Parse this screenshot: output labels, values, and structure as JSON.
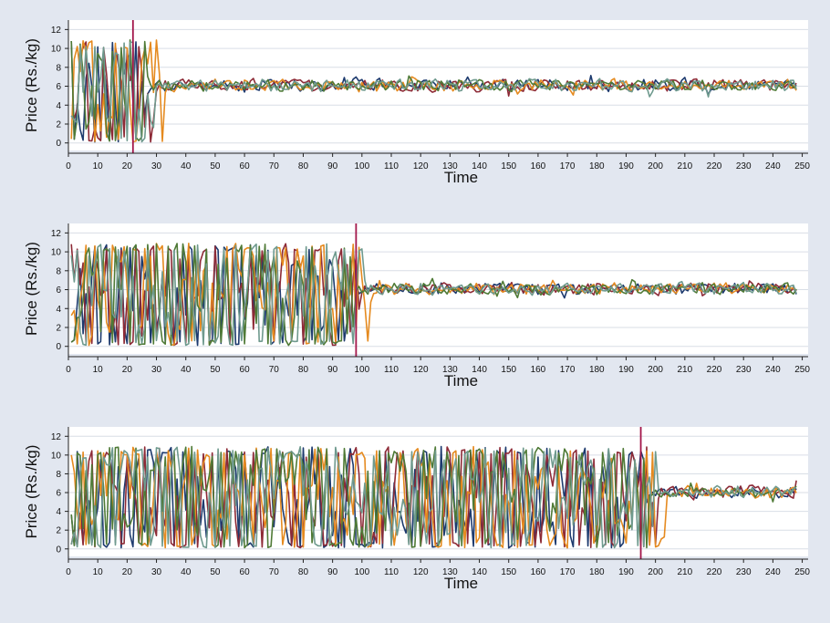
{
  "colors": {
    "background": "#e2e7f0",
    "plot_background": "#ffffff",
    "grid": "#d9dee6",
    "marker_line": "#a3164a",
    "series": [
      "#1d3a6e",
      "#8d2a36",
      "#e58a1f",
      "#4f7a36",
      "#6f9a8e"
    ]
  },
  "chart_data": [
    {
      "type": "line",
      "panel": "top",
      "xlabel": "Time",
      "ylabel": "Price (Rs./kg)",
      "xlim": [
        0,
        252
      ],
      "ylim": [
        -0.8,
        13
      ],
      "xticks": [
        0,
        10,
        20,
        30,
        40,
        50,
        60,
        70,
        80,
        90,
        100,
        110,
        120,
        130,
        140,
        150,
        160,
        170,
        180,
        190,
        200,
        210,
        220,
        230,
        240,
        250
      ],
      "yticks": [
        0,
        2,
        4,
        6,
        8,
        10,
        12
      ],
      "grid": "horizontal",
      "vertical_marker": 22,
      "converge_time": 22,
      "chaos_amplitude": 5.5,
      "noise_amplitude": 1.4,
      "series_count": 5
    },
    {
      "type": "line",
      "panel": "middle",
      "xlabel": "Time",
      "ylabel": "Price (Rs./kg)",
      "xlim": [
        0,
        252
      ],
      "ylim": [
        -0.8,
        13
      ],
      "xticks": [
        0,
        10,
        20,
        30,
        40,
        50,
        60,
        70,
        80,
        90,
        100,
        110,
        120,
        130,
        140,
        150,
        160,
        170,
        180,
        190,
        200,
        210,
        220,
        230,
        240,
        250
      ],
      "yticks": [
        0,
        2,
        4,
        6,
        8,
        10,
        12
      ],
      "grid": "horizontal",
      "vertical_marker": 98,
      "converge_time": 98,
      "chaos_amplitude": 5.5,
      "noise_amplitude": 1.4,
      "series_count": 5
    },
    {
      "type": "line",
      "panel": "bottom",
      "xlabel": "Time",
      "ylabel": "Price (Rs./kg)",
      "xlim": [
        0,
        252
      ],
      "ylim": [
        -0.8,
        13
      ],
      "xticks": [
        0,
        10,
        20,
        30,
        40,
        50,
        60,
        70,
        80,
        90,
        100,
        110,
        120,
        130,
        140,
        150,
        160,
        170,
        180,
        190,
        200,
        210,
        220,
        230,
        240,
        250
      ],
      "yticks": [
        0,
        2,
        4,
        6,
        8,
        10,
        12
      ],
      "grid": "horizontal",
      "vertical_marker": 195,
      "converge_time": 195,
      "chaos_amplitude": 5.5,
      "noise_amplitude": 1.4,
      "series_count": 5
    }
  ]
}
